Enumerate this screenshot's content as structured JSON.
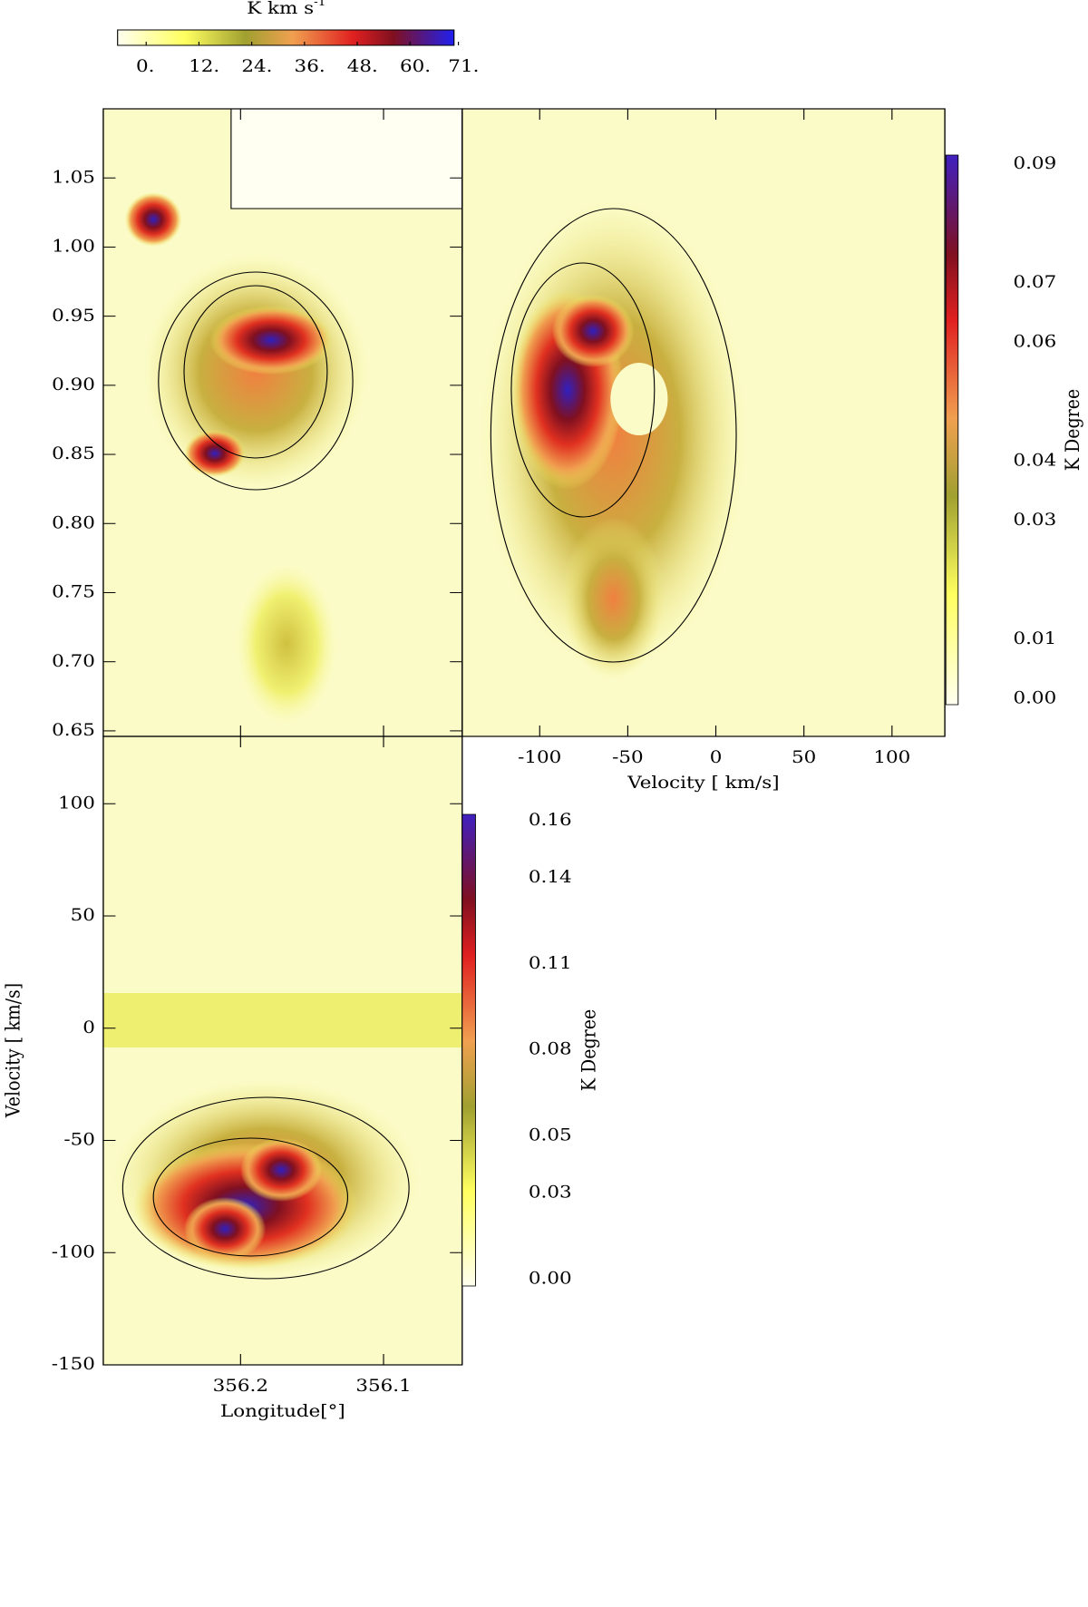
{
  "chart_data": [
    {
      "type": "colorbar",
      "orientation": "horizontal",
      "title": "K km s",
      "title_sup": "-1",
      "xlim": [
        -6.5,
        70
      ],
      "xticks": [
        {
          "value": 0,
          "label": "0."
        },
        {
          "value": 12,
          "label": "12."
        },
        {
          "value": 24,
          "label": "24."
        },
        {
          "value": 36,
          "label": "36."
        },
        {
          "value": 48,
          "label": "48."
        },
        {
          "value": 60,
          "label": "60."
        },
        {
          "value": 71,
          "label": "71."
        }
      ]
    },
    {
      "type": "heatmap",
      "xlim": [
        356.296,
        356.045
      ],
      "xticks": [
        356.2,
        356.1
      ],
      "ylim": [
        0.646,
        1.1
      ],
      "yticks": [
        0.65,
        {
          "value": 0.7,
          "label": "0.70"
        },
        0.75,
        {
          "value": 0.8,
          "label": "0.80"
        },
        0.85,
        {
          "value": 0.9,
          "label": "0.90"
        },
        0.95,
        {
          "value": 1,
          "label": "1.00"
        },
        1.05
      ]
    },
    {
      "type": "heatmap",
      "xlabel": "Velocity [ km/s]",
      "xlim": [
        -144,
        130
      ],
      "xticks": [
        -100,
        -50,
        0,
        50,
        100
      ],
      "ylim": [
        0.646,
        1.1
      ],
      "colorbar": {
        "label": "K Degree",
        "ylim": [
          -0.001,
          0.0915
        ],
        "yticks": [
          {
            "value": 0,
            "label": "0.00"
          },
          0.01,
          0.03,
          0.04,
          0.06,
          0.07,
          0.09
        ]
      }
    },
    {
      "type": "heatmap",
      "xlabel": "Longitude[°]",
      "ylabel": "Velocity [ km/s]",
      "xlim": [
        356.296,
        356.045
      ],
      "xticks": [
        356.2,
        356.1
      ],
      "ylim": [
        -150,
        130
      ],
      "yticks": [
        -150,
        -100,
        -50,
        0,
        50,
        100
      ],
      "colorbar": {
        "label": "K Degree",
        "ylim": [
          -0.0025,
          0.1622
        ],
        "yticks": [
          {
            "value": 0,
            "label": "0.00"
          },
          0.03,
          0.05,
          0.08,
          0.11,
          0.14,
          0.16
        ]
      }
    }
  ]
}
